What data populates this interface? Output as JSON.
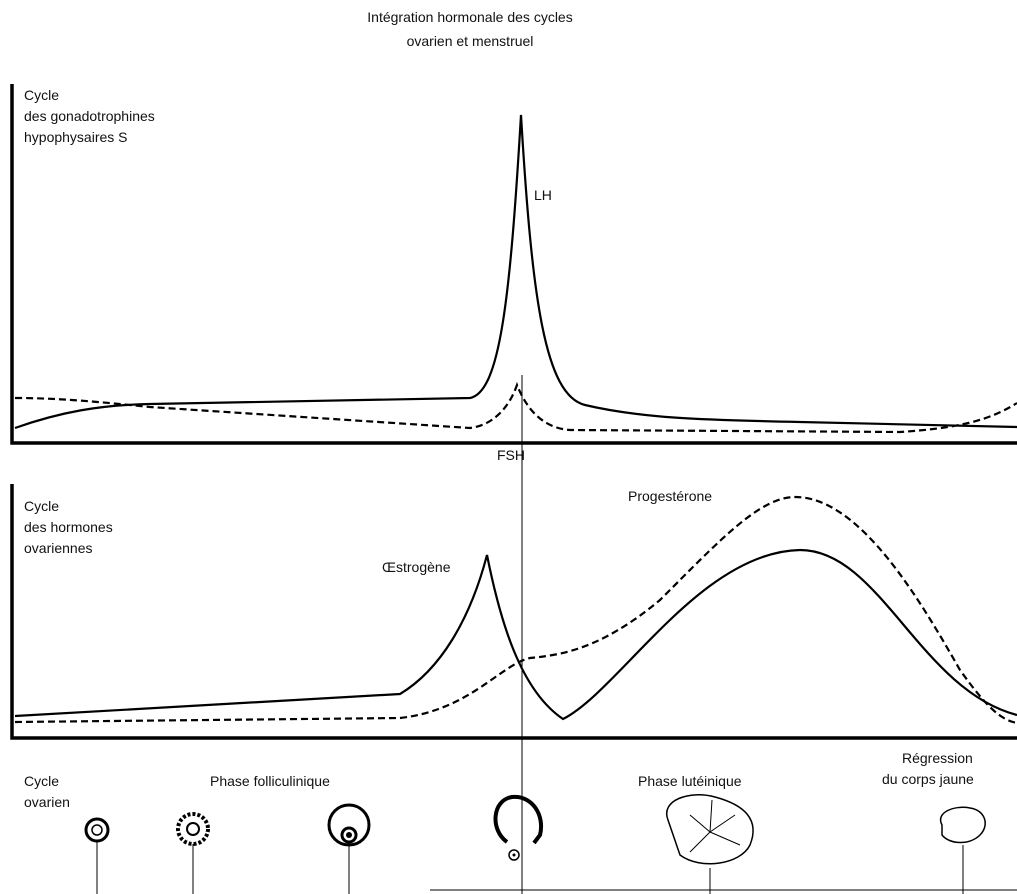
{
  "title": {
    "lines": [
      "Intégration hormonale des cycles",
      "ovarien et menstruel"
    ]
  },
  "gonadotrophins": {
    "label_lines": [
      "Cycle",
      "des gonadotrophines",
      "hypophysaires S"
    ],
    "lh": "LH",
    "fsh": "FSH"
  },
  "ovarian_hormones": {
    "label_lines": [
      "Cycle",
      "des hormones",
      "ovariennes"
    ],
    "estrogen": "Œstrogène",
    "progesterone": "Progestérone"
  },
  "ovarian_cycle": {
    "label_lines": [
      "Cycle",
      "ovarien"
    ],
    "follicular_phase": "Phase folliculinique",
    "luteal_phase": "Phase lutéinique",
    "regression_lines": [
      "Régression",
      "du corps jaune"
    ]
  }
}
